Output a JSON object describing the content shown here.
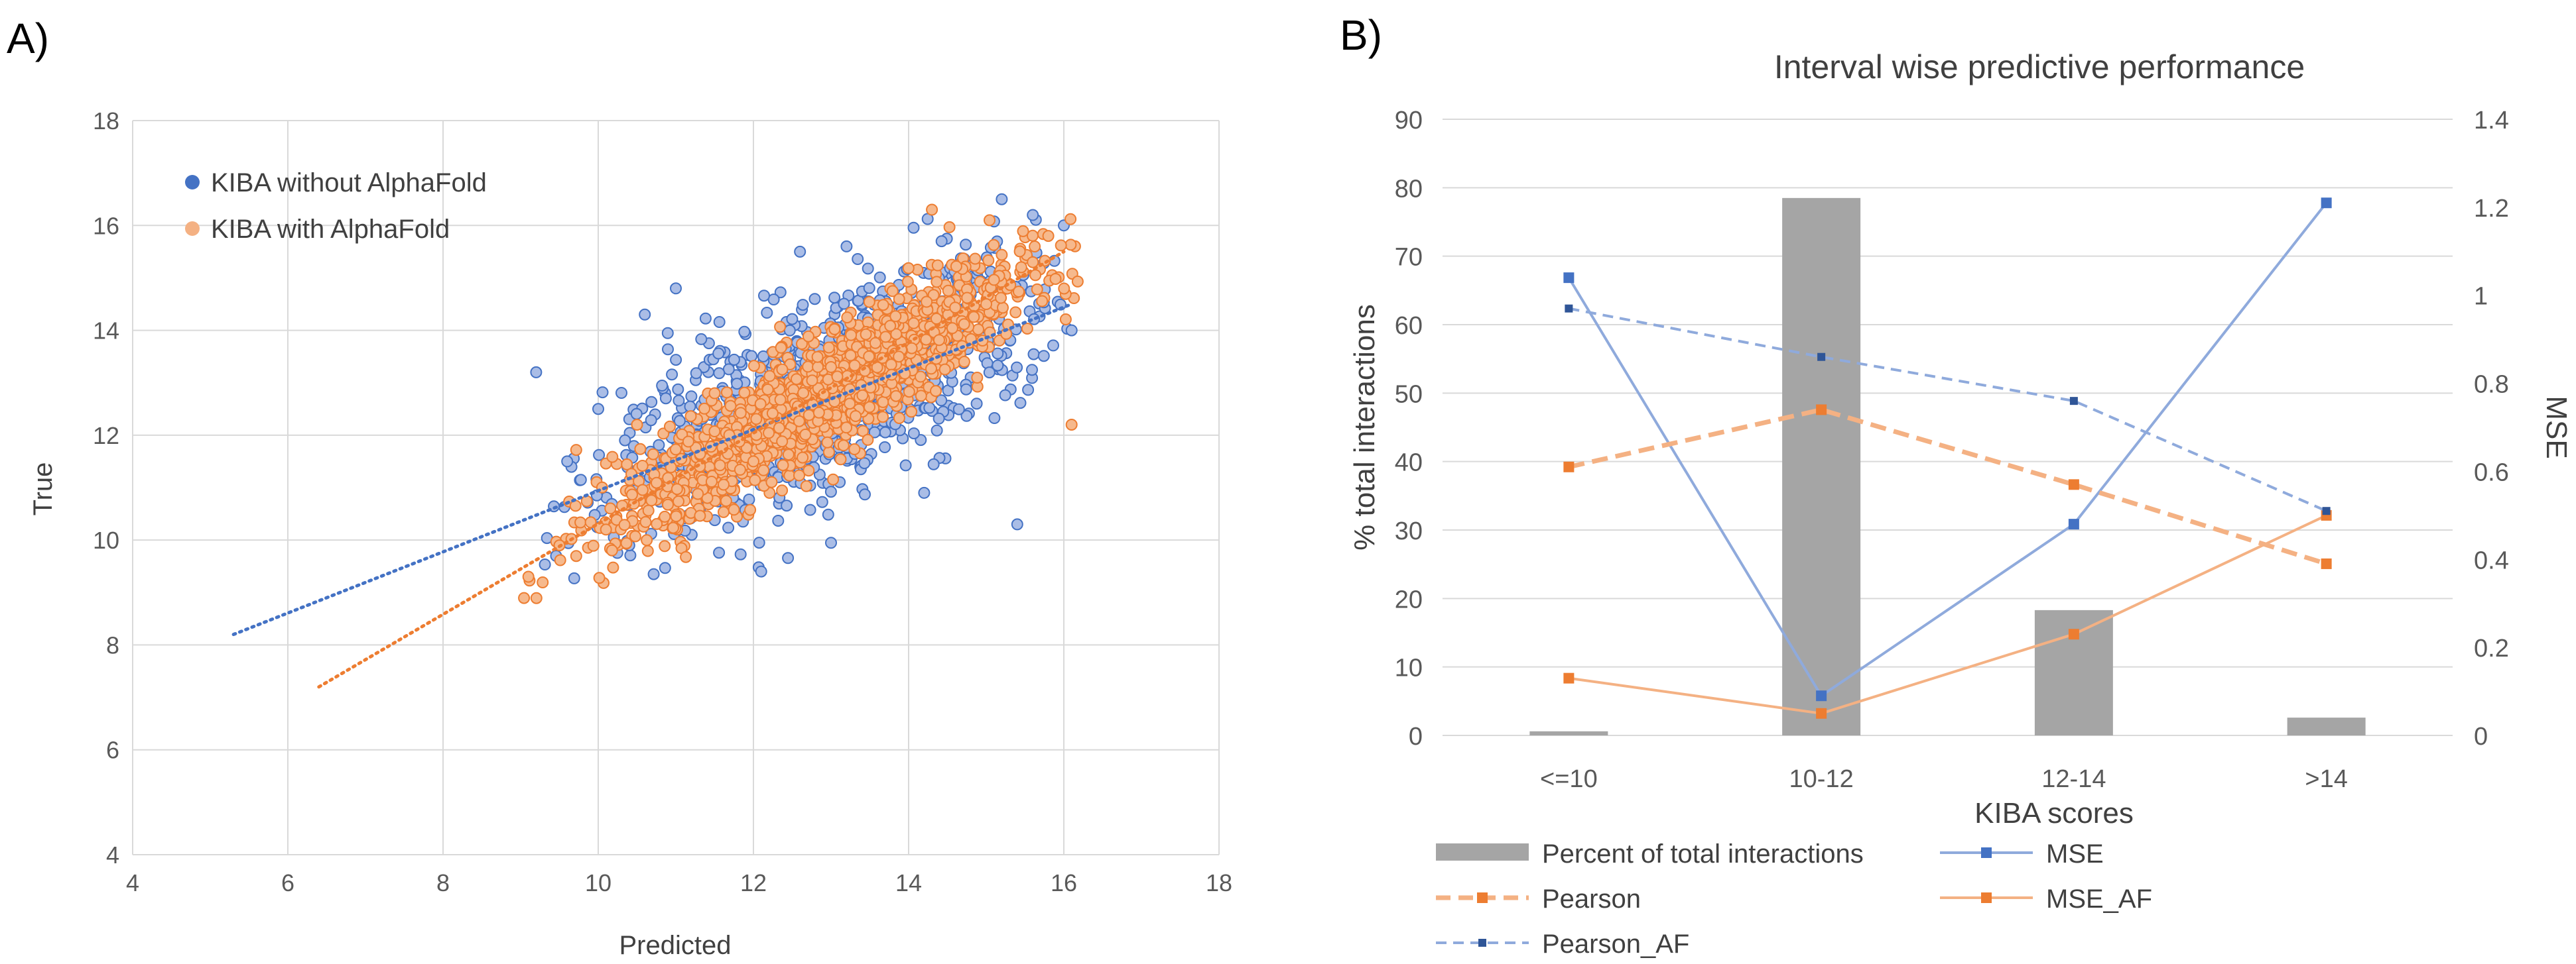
{
  "panels": {
    "a_label": "A)",
    "b_label": "B)"
  },
  "chart_data": [
    {
      "type": "scatter",
      "title": "",
      "xlabel": "Predicted",
      "ylabel": "True",
      "xlim": [
        4,
        18
      ],
      "ylim": [
        4,
        18
      ],
      "xticks": [
        "4",
        "6",
        "8",
        "10",
        "12",
        "14",
        "16",
        "18"
      ],
      "yticks": [
        "4",
        "6",
        "8",
        "10",
        "12",
        "14",
        "16",
        "18"
      ],
      "grid": true,
      "legend_position": "top-left",
      "series": [
        {
          "name": "KIBA without AlphaFold",
          "color": "#4472c4",
          "marker_fill": "#aabde6",
          "trendline": {
            "x": [
              5.3,
              16.1
            ],
            "y": [
              8.2,
              14.5
            ]
          },
          "points_sample": [
            [
              9.2,
              13.2
            ],
            [
              10.0,
              12.5
            ],
            [
              10.4,
              9.9
            ],
            [
              11.0,
              14.8
            ],
            [
              12.1,
              9.4
            ],
            [
              12.6,
              15.5
            ],
            [
              13.2,
              15.6
            ],
            [
              14.2,
              10.9
            ],
            [
              15.2,
              16.5
            ],
            [
              15.6,
              16.2
            ],
            [
              16.0,
              16.0
            ],
            [
              16.1,
              14.0
            ],
            [
              15.4,
              10.3
            ],
            [
              10.6,
              14.3
            ],
            [
              9.6,
              11.5
            ]
          ]
        },
        {
          "name": "KIBA with AlphaFold",
          "color": "#ed7d31",
          "marker_fill": "#f6b98d",
          "trendline": {
            "x": [
              6.4,
              16.0
            ],
            "y": [
              7.2,
              15.5
            ]
          },
          "points_sample": [
            [
              9.1,
              9.3
            ],
            [
              9.5,
              9.9
            ],
            [
              10.1,
              10.2
            ],
            [
              10.5,
              12.2
            ],
            [
              11.5,
              12.8
            ],
            [
              12.0,
              11.5
            ],
            [
              13.0,
              13.3
            ],
            [
              14.3,
              16.3
            ],
            [
              15.0,
              14.5
            ],
            [
              15.6,
              15.3
            ],
            [
              16.1,
              12.2
            ],
            [
              15.8,
              15.8
            ]
          ]
        }
      ]
    },
    {
      "type": "bar+line",
      "title": "Interval wise predictive performance",
      "xlabel": "KIBA scores",
      "ylabel": "% total interactions",
      "y2label": "MSE",
      "categories": [
        "<=10",
        "10-12",
        "12-14",
        ">14"
      ],
      "ylim": [
        0,
        90
      ],
      "yticks": [
        "0",
        "10",
        "20",
        "30",
        "40",
        "50",
        "60",
        "70",
        "80",
        "90"
      ],
      "y2lim": [
        0,
        1.4
      ],
      "y2ticks": [
        "0",
        "0.2",
        "0.4",
        "0.6",
        "0.8",
        "1",
        "1.2",
        "1.4"
      ],
      "grid": true,
      "legend_position": "bottom",
      "series": [
        {
          "name": "Percent of total interactions",
          "kind": "bar",
          "axis": "left",
          "color": "#a5a5a5",
          "values": [
            0.6,
            78.5,
            18.3,
            2.6
          ]
        },
        {
          "name": "MSE",
          "kind": "line",
          "axis": "right",
          "style": "solid",
          "color": "#4472c4",
          "line_color": "#8faadc",
          "values": [
            1.04,
            0.09,
            0.48,
            1.21
          ]
        },
        {
          "name": "Pearson",
          "kind": "line",
          "axis": "right",
          "style": "dashed",
          "color": "#ed7d31",
          "line_color": "#f4b183",
          "values": [
            0.61,
            0.74,
            0.57,
            0.39
          ]
        },
        {
          "name": "MSE_AF",
          "kind": "line",
          "axis": "right",
          "style": "solid",
          "color": "#ed7d31",
          "line_color": "#f4b183",
          "values": [
            0.13,
            0.05,
            0.23,
            0.5
          ]
        },
        {
          "name": "Pearson_AF",
          "kind": "line",
          "axis": "right",
          "style": "dashed",
          "color": "#2f5597",
          "line_color": "#8faadc",
          "values": [
            0.97,
            0.86,
            0.76,
            0.51
          ]
        }
      ]
    }
  ]
}
